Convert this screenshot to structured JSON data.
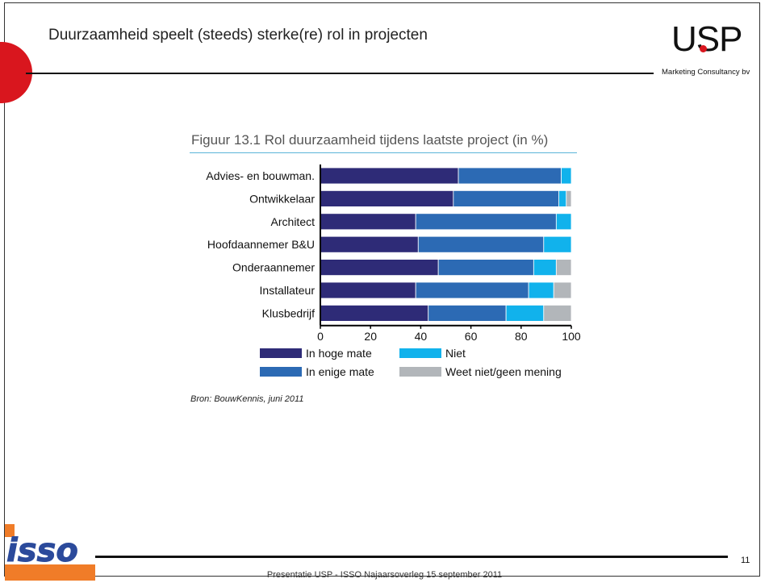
{
  "slide": {
    "title": "Duurzaamheid speelt (steeds) sterke(re) rol in projecten",
    "footer": "Presentatie USP - ISSO Najaarsoverleg 15 september 2011",
    "page_number": "11",
    "source": "Bron: BouwKennis, juni 2011",
    "usp_logo_text": "USP",
    "usp_logo_subtitle": "Marketing Consultancy bv",
    "isso_logo_text": "isso"
  },
  "colors": {
    "in_hoge_mate": "#2e2b77",
    "in_enige_mate": "#2c6ab4",
    "niet": "#11b2ec",
    "weet_niet": "#b2b6ba",
    "accent_red": "#d9161e",
    "isso_orange": "#f07c28"
  },
  "chart_data": {
    "type": "bar",
    "orientation": "horizontal",
    "stacked": true,
    "title": "Figuur 13.1 Rol duurzaamheid tijdens laatste project (in %)",
    "categories": [
      "Advies- en bouwman.",
      "Ontwikkelaar",
      "Architect",
      "Hoofdaannemer B&U",
      "Onderaannemer",
      "Installateur",
      "Klusbedrijf"
    ],
    "series": [
      {
        "name": "In hoge mate",
        "values": [
          55,
          53,
          38,
          39,
          47,
          38,
          43
        ]
      },
      {
        "name": "In enige mate",
        "values": [
          41,
          42,
          56,
          50,
          38,
          45,
          31
        ]
      },
      {
        "name": "Niet",
        "values": [
          4,
          3,
          6,
          11,
          9,
          10,
          15
        ]
      },
      {
        "name": "Weet niet/geen mening",
        "values": [
          0,
          2,
          0,
          0,
          6,
          7,
          11
        ]
      }
    ],
    "xlim": [
      0,
      100
    ],
    "xticks": [
      0,
      20,
      40,
      60,
      80,
      100
    ],
    "xlabel": "",
    "ylabel": "",
    "grid": false,
    "legend": "bottom"
  }
}
